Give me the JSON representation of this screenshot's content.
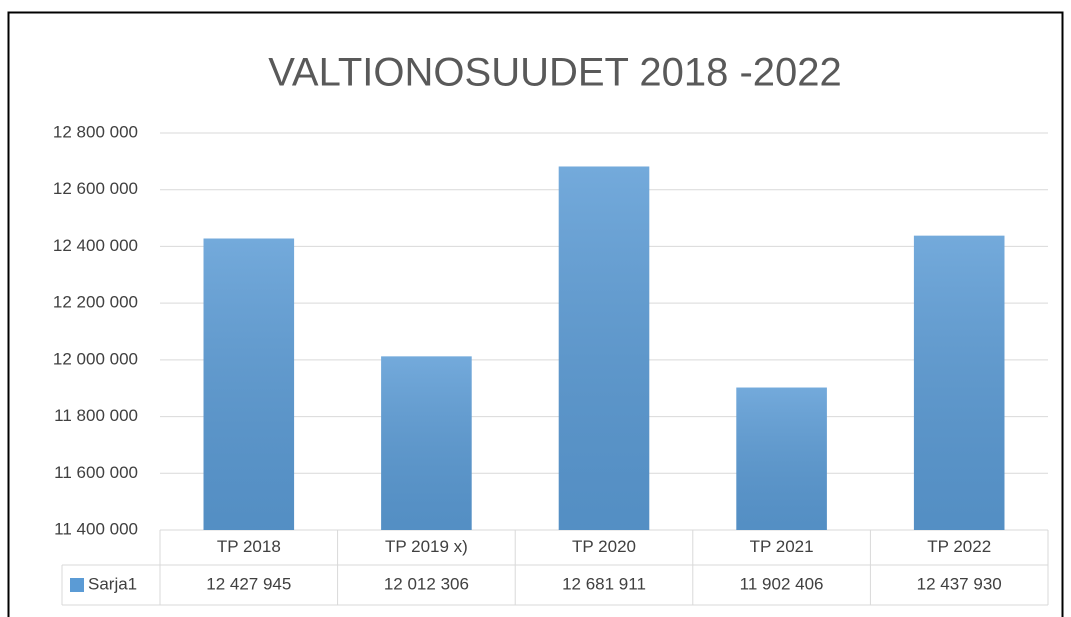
{
  "chart_data": {
    "type": "bar",
    "title": "VALTIONOSUUDET 2018 -2022",
    "categories": [
      "TP 2018",
      "TP 2019 x)",
      "TP 2020",
      "TP 2021",
      "TP 2022"
    ],
    "series": [
      {
        "name": "Sarja1",
        "color": "#5b9bd5",
        "values": [
          12427945,
          12012306,
          12681911,
          11902406,
          12437930
        ],
        "value_labels": [
          "12 427 945",
          "12 012 306",
          "12 681 911",
          "11 902 406",
          "12 437 930"
        ]
      }
    ],
    "ylim": [
      11400000,
      12800000
    ],
    "yticks": [
      {
        "value": 11400000,
        "label": "11 400 000"
      },
      {
        "value": 11600000,
        "label": "11 600 000"
      },
      {
        "value": 11800000,
        "label": "11 800 000"
      },
      {
        "value": 12000000,
        "label": "12 000 000"
      },
      {
        "value": 12200000,
        "label": "12 200 000"
      },
      {
        "value": 12400000,
        "label": "12 400 000"
      },
      {
        "value": 12600000,
        "label": "12 600 000"
      },
      {
        "value": 12800000,
        "label": "12 800 000"
      }
    ],
    "grid": true
  }
}
